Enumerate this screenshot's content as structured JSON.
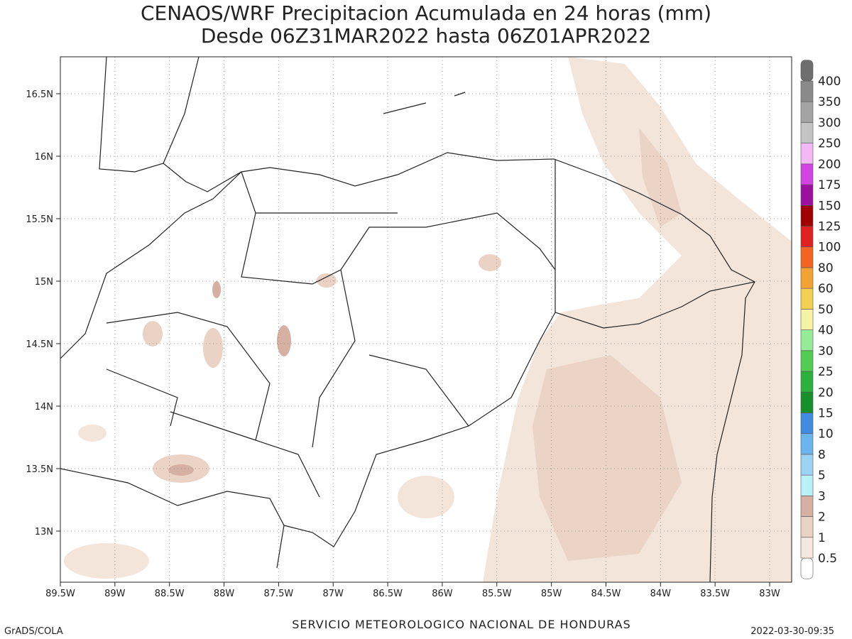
{
  "title": {
    "line1": "CENAOS/WRF Precipitacion Acumulada en 24 horas (mm)",
    "line2": "Desde 06Z31MAR2022 hasta 06Z01APR2022"
  },
  "map": {
    "lon_ticks": [
      "89.5W",
      "89W",
      "88.5W",
      "88W",
      "87.5W",
      "87W",
      "86.5W",
      "86W",
      "85.5W",
      "85W",
      "84.5W",
      "84W",
      "83.5W",
      "83W"
    ],
    "lat_ticks": [
      "16.5N",
      "16N",
      "15.5N",
      "15N",
      "14.5N",
      "14N",
      "13.5N",
      "13N"
    ]
  },
  "colorbar": {
    "labels": [
      0.5,
      1,
      2,
      3,
      5,
      8,
      10,
      15,
      20,
      25,
      30,
      40,
      50,
      60,
      80,
      100,
      125,
      150,
      175,
      200,
      250,
      300,
      350,
      400
    ],
    "colors": [
      "#ffffff",
      "#f6e8de",
      "#ead2c4",
      "#d6b0a2",
      "#b8f2f6",
      "#9cd2f2",
      "#6cb4ee",
      "#3f8ce0",
      "#16902a",
      "#2cb23c",
      "#52cc52",
      "#96ec96",
      "#f6f4a4",
      "#f4d052",
      "#f4a232",
      "#f46420",
      "#e02020",
      "#a00000",
      "#a010a0",
      "#d444e4",
      "#f4b8f4",
      "#c4c4c4",
      "#a4a4a4",
      "#8a8a8a",
      "#6e6e6e"
    ]
  },
  "footer": {
    "left": "GrADS/COLA",
    "center": "SERVICIO METEOROLOGICO NACIONAL DE HONDURAS",
    "right": "2022-03-30-09:35"
  }
}
